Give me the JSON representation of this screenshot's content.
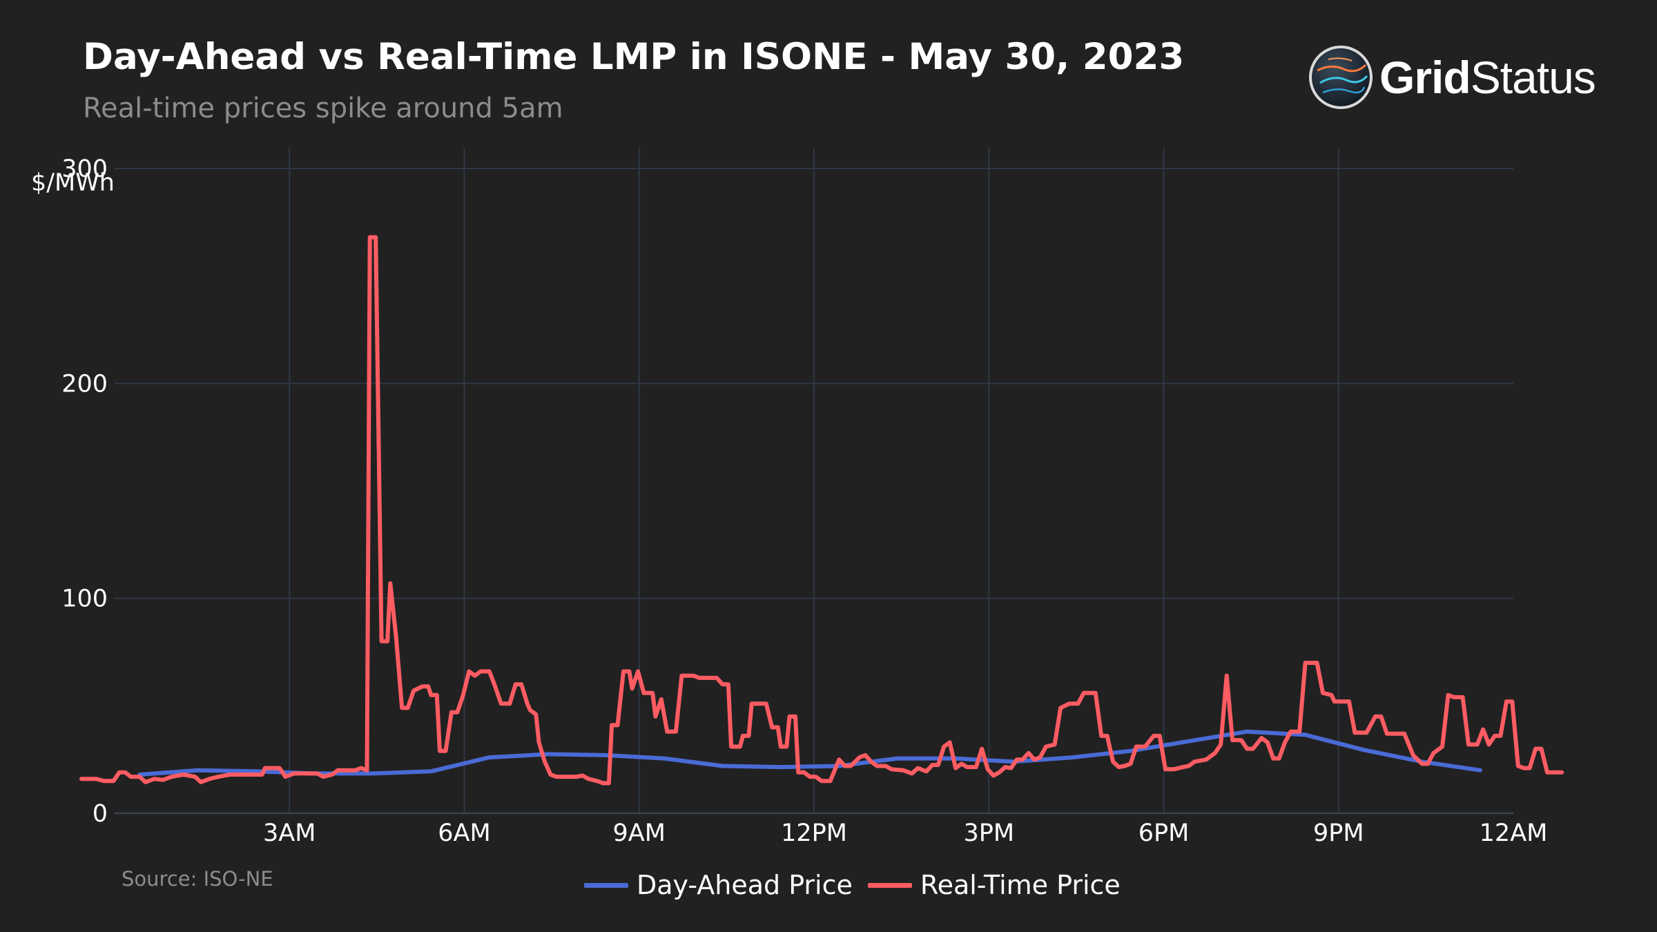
{
  "title": "Day-Ahead vs Real-Time LMP in ISONE - May 30, 2023",
  "subtitle": "Real-time prices spike around 5am",
  "source": "Source: ISO-NE",
  "logo": {
    "word1": "Grid",
    "word2": "Status",
    "icon": "gridstatus-globe-icon"
  },
  "colors": {
    "background": "#212121",
    "grid": "#2f3845",
    "day_ahead": "#4a6bd6",
    "real_time": "#ff5c63"
  },
  "chart_data": {
    "type": "line",
    "title": "Day-Ahead vs Real-Time LMP in ISONE - May 30, 2023",
    "ylabel": "$/MWh",
    "xlabel": "",
    "ylim": [
      0,
      300
    ],
    "xlim_hours": [
      0,
      24
    ],
    "y_ticks": [
      {
        "value": 0,
        "label": "0"
      },
      {
        "value": 100,
        "label": "100"
      },
      {
        "value": 200,
        "label": "200"
      },
      {
        "value": 300,
        "label": "300"
      }
    ],
    "x_ticks": [
      {
        "hour": 3,
        "label": "3AM"
      },
      {
        "hour": 6,
        "label": "6AM"
      },
      {
        "hour": 9,
        "label": "9AM"
      },
      {
        "hour": 12,
        "label": "12PM"
      },
      {
        "hour": 15,
        "label": "3PM"
      },
      {
        "hour": 18,
        "label": "6PM"
      },
      {
        "hour": 21,
        "label": "9PM"
      },
      {
        "hour": 24,
        "label": "12AM"
      }
    ],
    "grid": true,
    "legend_position": "bottom",
    "series": [
      {
        "name": "Day-Ahead Price",
        "color": "#4a6bd6",
        "points": [
          [
            1,
            18
          ],
          [
            2,
            20
          ],
          [
            3,
            19.5
          ],
          [
            4,
            18.5
          ],
          [
            5,
            18.5
          ],
          [
            6,
            19.5
          ],
          [
            7,
            26
          ],
          [
            8,
            27.5
          ],
          [
            9,
            27
          ],
          [
            10,
            25.5
          ],
          [
            11,
            22
          ],
          [
            12,
            21.5
          ],
          [
            13,
            22
          ],
          [
            14,
            25.5
          ],
          [
            15,
            25.5
          ],
          [
            16,
            24
          ],
          [
            17,
            26
          ],
          [
            18,
            29
          ],
          [
            19,
            33.5
          ],
          [
            20,
            38
          ],
          [
            21,
            36.5
          ],
          [
            22,
            29.5
          ],
          [
            23,
            24
          ],
          [
            24,
            20
          ]
        ]
      },
      {
        "name": "Real-Time Price",
        "color": "#ff5c63",
        "points": [
          [
            0,
            16
          ],
          [
            0.25,
            16
          ],
          [
            0.4,
            15
          ],
          [
            0.55,
            15
          ],
          [
            0.65,
            19
          ],
          [
            0.75,
            19
          ],
          [
            0.85,
            17
          ],
          [
            1,
            17
          ],
          [
            1.1,
            14.5
          ],
          [
            1.25,
            16
          ],
          [
            1.4,
            15.5
          ],
          [
            1.55,
            17
          ],
          [
            1.75,
            18
          ],
          [
            1.95,
            17
          ],
          [
            2.05,
            14.5
          ],
          [
            2.2,
            16
          ],
          [
            2.35,
            17
          ],
          [
            2.55,
            18
          ],
          [
            2.9,
            18
          ],
          [
            3.1,
            18
          ],
          [
            3.15,
            21
          ],
          [
            3.4,
            21
          ],
          [
            3.5,
            17
          ],
          [
            3.65,
            18.5
          ],
          [
            4.05,
            18.5
          ],
          [
            4.15,
            17
          ],
          [
            4.3,
            18
          ],
          [
            4.4,
            20
          ],
          [
            4.7,
            20
          ],
          [
            4.8,
            21
          ],
          [
            4.9,
            20
          ],
          [
            4.95,
            268
          ],
          [
            5.05,
            268
          ],
          [
            5.15,
            80
          ],
          [
            5.25,
            80
          ],
          [
            5.3,
            107
          ],
          [
            5.4,
            82
          ],
          [
            5.5,
            49
          ],
          [
            5.6,
            49
          ],
          [
            5.7,
            57
          ],
          [
            5.85,
            59
          ],
          [
            5.95,
            59
          ],
          [
            6.0,
            55
          ],
          [
            6.1,
            55
          ],
          [
            6.15,
            29
          ],
          [
            6.25,
            29
          ],
          [
            6.35,
            47
          ],
          [
            6.45,
            47
          ],
          [
            6.55,
            55
          ],
          [
            6.65,
            66
          ],
          [
            6.75,
            64
          ],
          [
            6.85,
            66
          ],
          [
            7.0,
            66
          ],
          [
            7.1,
            59
          ],
          [
            7.2,
            51
          ],
          [
            7.35,
            51
          ],
          [
            7.45,
            60
          ],
          [
            7.55,
            60
          ],
          [
            7.65,
            51
          ],
          [
            7.7,
            48
          ],
          [
            7.8,
            46
          ],
          [
            7.85,
            33
          ],
          [
            7.95,
            24
          ],
          [
            8.05,
            18
          ],
          [
            8.15,
            17
          ],
          [
            8.35,
            17
          ],
          [
            8.5,
            17
          ],
          [
            8.6,
            17.5
          ],
          [
            8.7,
            16
          ],
          [
            8.85,
            15
          ],
          [
            8.95,
            14
          ],
          [
            9.05,
            14
          ],
          [
            9.1,
            41
          ],
          [
            9.2,
            41
          ],
          [
            9.3,
            66
          ],
          [
            9.4,
            66
          ],
          [
            9.45,
            58
          ],
          [
            9.55,
            66
          ],
          [
            9.65,
            56
          ],
          [
            9.8,
            56
          ],
          [
            9.85,
            45
          ],
          [
            9.95,
            53
          ],
          [
            10.05,
            38
          ],
          [
            10.2,
            38
          ],
          [
            10.3,
            64
          ],
          [
            10.5,
            64
          ],
          [
            10.6,
            63
          ],
          [
            10.9,
            63
          ],
          [
            11.0,
            60
          ],
          [
            11.1,
            60
          ],
          [
            11.15,
            31
          ],
          [
            11.3,
            31
          ],
          [
            11.35,
            36
          ],
          [
            11.45,
            36
          ],
          [
            11.5,
            51
          ],
          [
            11.75,
            51
          ],
          [
            11.85,
            40
          ],
          [
            11.95,
            40
          ],
          [
            12.0,
            31
          ],
          [
            12.1,
            31
          ],
          [
            12.15,
            45
          ],
          [
            12.25,
            45
          ],
          [
            12.3,
            19
          ],
          [
            12.4,
            19
          ],
          [
            12.5,
            17
          ],
          [
            12.6,
            17
          ],
          [
            12.7,
            15
          ],
          [
            12.85,
            15
          ],
          [
            13.0,
            25
          ],
          [
            13.1,
            22
          ],
          [
            13.2,
            22
          ],
          [
            13.35,
            26
          ],
          [
            13.45,
            27
          ],
          [
            13.55,
            24
          ],
          [
            13.65,
            22
          ],
          [
            13.8,
            22
          ],
          [
            13.9,
            20.5
          ],
          [
            14.1,
            20
          ],
          [
            14.25,
            18.5
          ],
          [
            14.35,
            21
          ],
          [
            14.5,
            19.5
          ],
          [
            14.6,
            22.5
          ],
          [
            14.7,
            22.5
          ],
          [
            14.8,
            31
          ],
          [
            14.9,
            33
          ],
          [
            15.0,
            21
          ],
          [
            15.1,
            23
          ],
          [
            15.2,
            21.5
          ],
          [
            15.35,
            21.5
          ],
          [
            15.45,
            30
          ],
          [
            15.55,
            20.5
          ],
          [
            15.65,
            17.5
          ],
          [
            15.75,
            19
          ],
          [
            15.85,
            21.5
          ],
          [
            15.95,
            21
          ],
          [
            16.05,
            25
          ],
          [
            16.15,
            25
          ],
          [
            16.25,
            28
          ],
          [
            16.35,
            25
          ],
          [
            16.45,
            26
          ],
          [
            16.55,
            31
          ],
          [
            16.7,
            32
          ],
          [
            16.8,
            49
          ],
          [
            16.95,
            51
          ],
          [
            17.1,
            51
          ],
          [
            17.2,
            56
          ],
          [
            17.4,
            56
          ],
          [
            17.5,
            36
          ],
          [
            17.6,
            36
          ],
          [
            17.7,
            24
          ],
          [
            17.8,
            21.5
          ],
          [
            17.9,
            22
          ],
          [
            18.0,
            23
          ],
          [
            18.1,
            31
          ],
          [
            18.25,
            31
          ],
          [
            18.4,
            36
          ],
          [
            18.5,
            36
          ],
          [
            18.6,
            20.5
          ],
          [
            18.75,
            20.5
          ],
          [
            18.9,
            21.5
          ],
          [
            19.0,
            22
          ],
          [
            19.1,
            24
          ],
          [
            19.3,
            25
          ],
          [
            19.45,
            28
          ],
          [
            19.55,
            32
          ],
          [
            19.65,
            64
          ],
          [
            19.75,
            34
          ],
          [
            19.9,
            34
          ],
          [
            20.0,
            30
          ],
          [
            20.1,
            30
          ],
          [
            20.25,
            35
          ],
          [
            20.35,
            33
          ],
          [
            20.45,
            25.5
          ],
          [
            20.55,
            25.5
          ],
          [
            20.65,
            33
          ],
          [
            20.75,
            38
          ],
          [
            20.9,
            38
          ],
          [
            21.0,
            70
          ],
          [
            21.2,
            70
          ],
          [
            21.3,
            56
          ],
          [
            21.45,
            55
          ],
          [
            21.5,
            52
          ],
          [
            21.75,
            52
          ],
          [
            21.85,
            37.5
          ],
          [
            22.05,
            37.5
          ],
          [
            22.2,
            45
          ],
          [
            22.3,
            45
          ],
          [
            22.4,
            37
          ],
          [
            22.7,
            37
          ],
          [
            22.85,
            27
          ],
          [
            23.0,
            23
          ],
          [
            23.1,
            23
          ],
          [
            23.2,
            28
          ],
          [
            23.35,
            31
          ],
          [
            23.45,
            55
          ],
          [
            23.55,
            54
          ],
          [
            23.7,
            54
          ],
          [
            23.8,
            32
          ],
          [
            23.95,
            32
          ],
          [
            24.05,
            39
          ],
          [
            24.15,
            32
          ],
          [
            24.25,
            36
          ],
          [
            24.35,
            36
          ],
          [
            24.45,
            52
          ],
          [
            24.55,
            52
          ],
          [
            24.65,
            22
          ],
          [
            24.75,
            21
          ],
          [
            24.85,
            21
          ],
          [
            24.95,
            30
          ],
          [
            25.05,
            30
          ],
          [
            25.15,
            19
          ],
          [
            25.3,
            19
          ],
          [
            25.4,
            19
          ]
        ]
      }
    ]
  },
  "legend": {
    "items": [
      {
        "label": "Day-Ahead Price",
        "color": "#4a6bd6"
      },
      {
        "label": "Real-Time Price",
        "color": "#ff5c63"
      }
    ]
  }
}
